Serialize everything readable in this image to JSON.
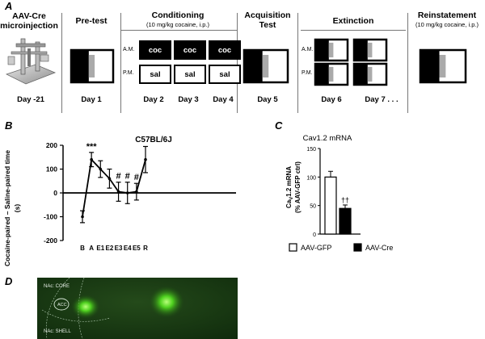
{
  "panel_a": {
    "letter": "A",
    "stages": {
      "microinjection": "AAV-Cre microinjection",
      "pretest": "Pre-test",
      "conditioning": "Conditioning",
      "conditioning_sub": "(10 mg/kg cocaine, i.p.)",
      "acquisition": "Acquisition Test",
      "extinction": "Extinction",
      "reinstatement": "Reinstatement",
      "reinstatement_sub": "(10 mg/kg cocaine, i.p.)"
    },
    "days": {
      "d21": "Day -21",
      "d1": "Day 1",
      "d2": "Day 2",
      "d3": "Day 3",
      "d4": "Day 4",
      "d5": "Day 5",
      "d6": "Day 6",
      "d7": "Day 7 . . ."
    },
    "am": "A.M.",
    "pm": "P.M.",
    "coc": "coc",
    "sal": "sal"
  },
  "panel_b": {
    "letter": "B",
    "title": "C57BL/6J",
    "ylabel_line1": "Cocaine-paired – Saline-paired time",
    "ylabel_line2": "(s)"
  },
  "panel_c": {
    "letter": "C",
    "title": "Cav1.2 mRNA",
    "ylabel_line1": "Ca",
    "ylabel_sub": "V",
    "ylabel_rest": "1.2 mRNA",
    "ylabel_line2": "(% AAV-GFP ctrl)",
    "legend_gfp": "AAV-GFP",
    "legend_cre": "AAV-Cre"
  },
  "panel_d": {
    "letter": "D",
    "label_core": "NAc: CORE",
    "label_acc": "ACC",
    "label_shell": "NAc: SHELL"
  },
  "chart_data": [
    {
      "type": "line",
      "title": "C57BL/6J",
      "xlabel": "",
      "ylabel": "Cocaine-paired – Saline-paired time (s)",
      "categories": [
        "B",
        "A",
        "E1",
        "E2",
        "E3",
        "E4",
        "E5",
        "R"
      ],
      "values": [
        -100,
        140,
        100,
        60,
        5,
        0,
        5,
        140
      ],
      "errors": [
        25,
        30,
        35,
        40,
        40,
        45,
        35,
        55
      ],
      "annotations": [
        "",
        "***",
        "",
        "",
        "#",
        "#",
        "#",
        ""
      ],
      "yticks": [
        -200,
        -100,
        0,
        100,
        200
      ],
      "ylim": [
        -200,
        200
      ],
      "grid": false
    },
    {
      "type": "bar",
      "title": "Cav1.2 mRNA",
      "ylabel": "CaV1.2 mRNA (% AAV-GFP ctrl)",
      "categories": [
        "AAV-GFP",
        "AAV-Cre"
      ],
      "values": [
        100,
        45
      ],
      "errors": [
        10,
        6
      ],
      "colors": [
        "#ffffff",
        "#000000"
      ],
      "annotations": [
        "",
        "††"
      ],
      "yticks": [
        0,
        50,
        100,
        150
      ],
      "ylim": [
        0,
        150
      ],
      "legend": "bottom"
    }
  ]
}
